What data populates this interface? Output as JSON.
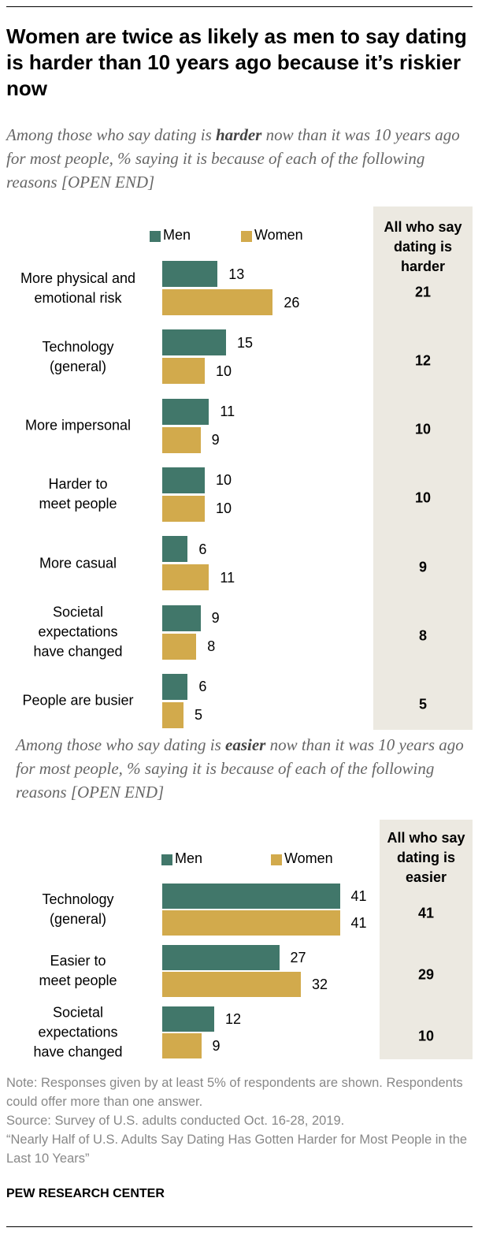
{
  "title": "Women are twice as likely as men to say dating is harder than 10 years ago because it’s riskier now",
  "chart_data": [
    {
      "type": "bar",
      "orientation": "horizontal",
      "subtitle": [
        "Among those who say dating is ",
        "harder",
        " now than it was 10 years ago for most people, % saying it is because of each of the following reasons [OPEN END]"
      ],
      "categories": [
        "More physical and\nemotional risk",
        "Technology\n(general)",
        "More impersonal",
        "Harder to\nmeet people",
        "More casual",
        "Societal\nexpectations\nhave changed",
        "People are busier"
      ],
      "series": [
        {
          "name": "Men",
          "color": "#41776a",
          "values": [
            13,
            15,
            11,
            10,
            6,
            9,
            6
          ]
        },
        {
          "name": "Women",
          "color": "#d2aa4c",
          "values": [
            26,
            10,
            9,
            10,
            11,
            8,
            5
          ]
        }
      ],
      "totals": {
        "name": "All who say dating is harder",
        "values": [
          21,
          12,
          10,
          10,
          9,
          8,
          5
        ]
      }
    },
    {
      "type": "bar",
      "orientation": "horizontal",
      "subtitle": [
        "Among those who say dating is ",
        "easier",
        " now than it was 10 years ago for most people, % saying it is because of each of the following reasons [OPEN END]"
      ],
      "categories": [
        "Technology\n(general)",
        "Easier to\nmeet people",
        "Societal\nexpectations\nhave changed"
      ],
      "series": [
        {
          "name": "Men",
          "color": "#41776a",
          "values": [
            41,
            27,
            12
          ]
        },
        {
          "name": "Women",
          "color": "#d2aa4c",
          "values": [
            41,
            32,
            9
          ]
        }
      ],
      "totals": {
        "name": "All who say dating is easier",
        "values": [
          41,
          29,
          10
        ]
      }
    }
  ],
  "notes": [
    "Note: Responses given by at least 5% of respondents are shown. Respondents could offer more than one answer.",
    "Source: Survey of U.S. adults conducted Oct. 16-28, 2019.",
    "“Nearly Half of U.S. Adults Say Dating Has Gotten Harder for Most People in the Last 10 Years”"
  ],
  "footer": "PEW RESEARCH CENTER"
}
